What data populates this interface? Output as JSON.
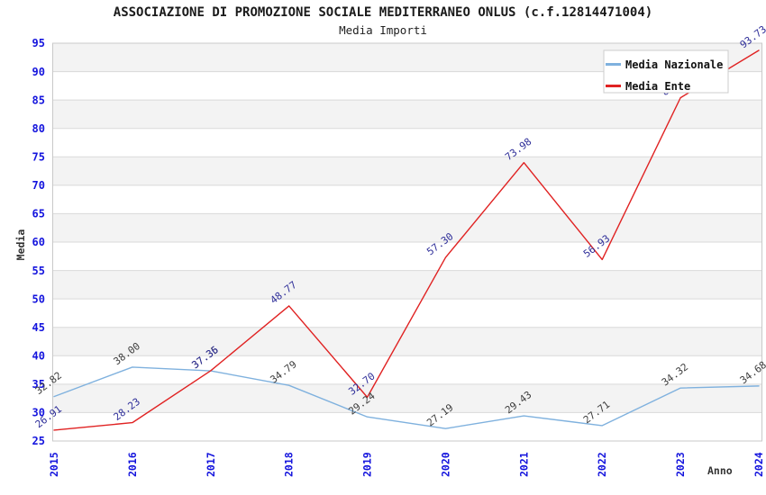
{
  "chart_data": {
    "type": "line",
    "title": "ASSOCIAZIONE DI PROMOZIONE SOCIALE MEDITERRANEO ONLUS (c.f.12814471004)",
    "subtitle": "Media Importi",
    "xlabel": "Anno",
    "ylabel": "Media",
    "x": [
      2015,
      2016,
      2017,
      2018,
      2019,
      2020,
      2021,
      2022,
      2023,
      2024
    ],
    "ylim": [
      25,
      95
    ],
    "ytick_step": 5,
    "grid": "horizontal",
    "striped_bands": [
      [
        30,
        35
      ],
      [
        40,
        45
      ],
      [
        50,
        55
      ],
      [
        60,
        65
      ],
      [
        70,
        75
      ],
      [
        80,
        85
      ],
      [
        90,
        95
      ]
    ],
    "legend_position": "top-right",
    "series": [
      {
        "name": "Media Nazionale",
        "color": "#7fb1de",
        "label_color": "#3c3c3c",
        "values": [
          32.82,
          38.0,
          37.35,
          34.79,
          29.24,
          27.19,
          29.43,
          27.71,
          34.32,
          34.68
        ],
        "labels": [
          "32.82",
          "38.00",
          "37.35",
          "34.79",
          "29.24",
          "27.19",
          "29.43",
          "27.71",
          "34.32",
          "34.68"
        ]
      },
      {
        "name": "Media Ente",
        "color": "#e02222",
        "label_color": "#2e2e99",
        "values": [
          26.91,
          28.23,
          37.36,
          48.77,
          32.7,
          57.3,
          73.98,
          56.93,
          85.4,
          93.73
        ],
        "labels": [
          "26.91",
          "28.23",
          "37.36",
          "48.77",
          "32.70",
          "57.30",
          "73.98",
          "56.93",
          "85.40",
          "93.73"
        ],
        "label_hidden_behind_legend_index": 8
      }
    ],
    "colors": {
      "tick_label": "#1414dd",
      "axis_title": "#333333",
      "band_fill": "#f3f3f3",
      "gridline": "#d9d9d9",
      "plot_border": "#c9c9c9",
      "legend_bg": "#ffffff",
      "legend_border": "#cccccc",
      "legend_text": "#111111"
    }
  }
}
